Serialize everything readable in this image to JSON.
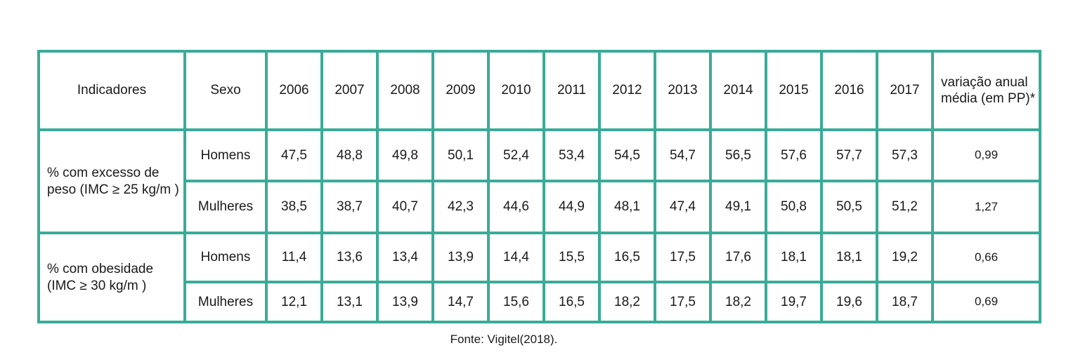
{
  "chart_data": {
    "type": "table",
    "columns": [
      "Indicadores",
      "Sexo",
      "2006",
      "2007",
      "2008",
      "2009",
      "2010",
      "2011",
      "2012",
      "2013",
      "2014",
      "2015",
      "2016",
      "2017",
      "variação anual média (em PP)*"
    ],
    "groups": [
      {
        "indicator": "% com excesso de peso (IMC ≥ 25 kg/m )",
        "rows": [
          {
            "sex": "Homens",
            "values": [
              "47,5",
              "48,8",
              "49,8",
              "50,1",
              "52,4",
              "53,4",
              "54,5",
              "54,7",
              "56,5",
              "57,6",
              "57,7",
              "57,3"
            ],
            "variation": "0,99"
          },
          {
            "sex": "Mulheres",
            "values": [
              "38,5",
              "38,7",
              "40,7",
              "42,3",
              "44,6",
              "44,9",
              "48,1",
              "47,4",
              "49,1",
              "50,8",
              "50,5",
              "51,2"
            ],
            "variation": "1,27"
          }
        ]
      },
      {
        "indicator": "% com obesidade (IMC ≥ 30 kg/m )",
        "rows": [
          {
            "sex": "Homens",
            "values": [
              "11,4",
              "13,6",
              "13,4",
              "13,9",
              "14,4",
              "15,5",
              "16,5",
              "17,5",
              "17,6",
              "18,1",
              "18,1",
              "19,2"
            ],
            "variation": "0,66"
          },
          {
            "sex": "Mulheres",
            "values": [
              "12,1",
              "13,1",
              "13,9",
              "14,7",
              "15,6",
              "16,5",
              "18,2",
              "17,5",
              "18,2",
              "19,7",
              "19,6",
              "18,7"
            ],
            "variation": "0,69"
          }
        ]
      }
    ],
    "border_color": "#3aab97"
  },
  "source": "Fonte: Vigitel(2018)."
}
